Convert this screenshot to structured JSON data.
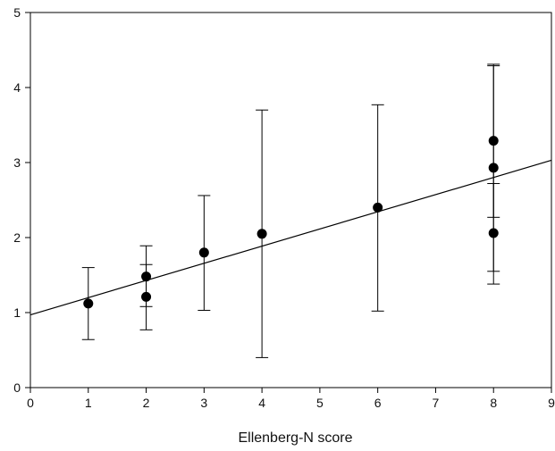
{
  "chart_data": {
    "type": "scatter",
    "title": "",
    "xlabel": "Ellenberg-N score",
    "ylabel": "",
    "xlim": [
      0,
      9
    ],
    "ylim": [
      0,
      5
    ],
    "x_ticks": [
      0,
      1,
      2,
      3,
      4,
      5,
      6,
      7,
      8,
      9
    ],
    "y_ticks": [
      0,
      1,
      2,
      3,
      4,
      5
    ],
    "grid": false,
    "points": [
      {
        "x": 1,
        "y": 1.12,
        "err_low": 0.64,
        "err_high": 1.6
      },
      {
        "x": 2,
        "y": 1.48,
        "err_low": 1.08,
        "err_high": 1.89
      },
      {
        "x": 2,
        "y": 1.21,
        "err_low": 0.77,
        "err_high": 1.64
      },
      {
        "x": 3,
        "y": 1.8,
        "err_low": 1.03,
        "err_high": 2.56
      },
      {
        "x": 4,
        "y": 2.05,
        "err_low": 0.4,
        "err_high": 3.7
      },
      {
        "x": 6,
        "y": 2.4,
        "err_low": 1.02,
        "err_high": 3.77
      },
      {
        "x": 8,
        "y": 3.29,
        "err_low": 2.27,
        "err_high": 4.31
      },
      {
        "x": 8,
        "y": 2.93,
        "err_low": 1.55,
        "err_high": 4.29
      },
      {
        "x": 8,
        "y": 2.06,
        "err_low": 1.38,
        "err_high": 2.72
      }
    ],
    "trendline": {
      "x": [
        0,
        9
      ],
      "y": [
        0.97,
        3.03
      ]
    },
    "colors": {
      "marker": "#000000",
      "line": "#000000",
      "axis": "#000000"
    }
  }
}
